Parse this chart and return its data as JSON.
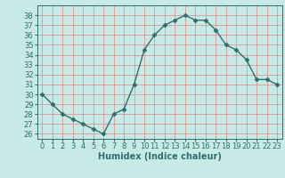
{
  "x": [
    0,
    1,
    2,
    3,
    4,
    5,
    6,
    7,
    8,
    9,
    10,
    11,
    12,
    13,
    14,
    15,
    16,
    17,
    18,
    19,
    20,
    21,
    22,
    23
  ],
  "y": [
    30,
    29,
    28,
    27.5,
    27,
    26.5,
    26,
    28,
    28.5,
    31,
    34.5,
    36,
    37,
    37.5,
    38,
    37.5,
    37.5,
    36.5,
    35,
    34.5,
    33.5,
    31.5,
    31.5,
    31
  ],
  "line_color": "#2d6e6e",
  "marker": "D",
  "marker_size": 2.5,
  "bg_color": "#c8eae6",
  "grid_color": "#dd8888",
  "xlabel": "Humidex (Indice chaleur)",
  "ylim": [
    25.5,
    39
  ],
  "xlim": [
    -0.5,
    23.5
  ],
  "yticks": [
    26,
    27,
    28,
    29,
    30,
    31,
    32,
    33,
    34,
    35,
    36,
    37,
    38
  ],
  "xticks": [
    0,
    1,
    2,
    3,
    4,
    5,
    6,
    7,
    8,
    9,
    10,
    11,
    12,
    13,
    14,
    15,
    16,
    17,
    18,
    19,
    20,
    21,
    22,
    23
  ],
  "tick_color": "#2d6e6e",
  "font_size_axis": 6,
  "font_size_label": 7,
  "linewidth": 1.0
}
